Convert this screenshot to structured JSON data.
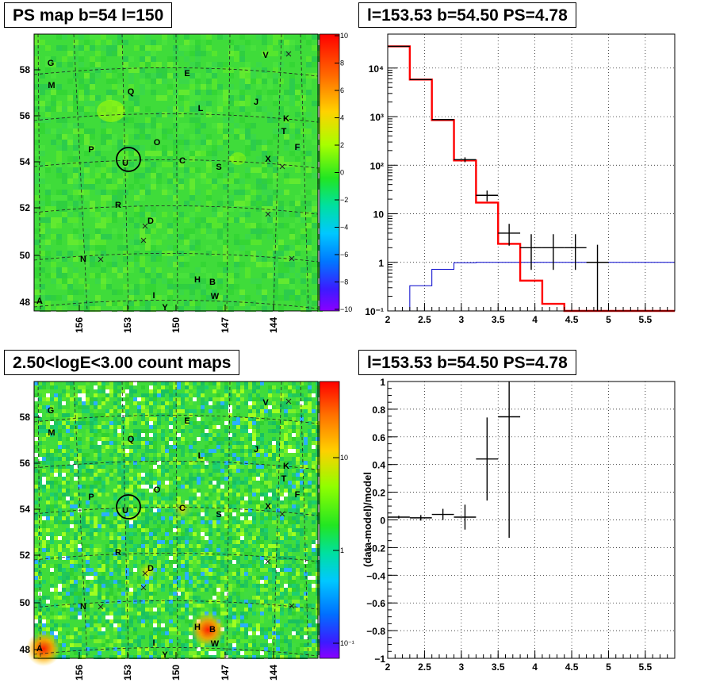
{
  "titles": {
    "map1": "PS map b=54 l=150",
    "spectrum": "l=153.53 b=54.50 PS=4.78",
    "map2": "2.50<logE<3.00 count maps",
    "residual": "l=153.53 b=54.50 PS=4.78"
  },
  "colors": {
    "map_green": "#3fdc3a",
    "model_red": "#ff0000",
    "background_blue": "#0000cc",
    "data_black": "#000000"
  },
  "chart_data": [
    {
      "type": "heatmap",
      "name": "ps-map",
      "title": "PS map b=54 l=150",
      "xticks": [
        "156",
        "153",
        "150",
        "147",
        "144"
      ],
      "yticks": [
        "58",
        "56",
        "54",
        "52",
        "50",
        "48"
      ],
      "colorbar_ticks": [
        "10",
        "8",
        "6",
        "4",
        "2",
        "0",
        "−2",
        "−4",
        "−6",
        "−8",
        "−10"
      ],
      "colorbar_range": [
        -10,
        10
      ],
      "sources": [
        "G",
        "M",
        "Q",
        "E",
        "L",
        "J",
        "V",
        "K",
        "T",
        "F",
        "P",
        "O",
        "C",
        "U",
        "S",
        "X",
        "R",
        "D",
        "N",
        "H",
        "B",
        "I",
        "W",
        "Y",
        "A"
      ],
      "circle_source": "U"
    },
    {
      "type": "line",
      "name": "spectrum",
      "title": "l=153.53 b=54.50 PS=4.78",
      "xlim": [
        2,
        5.9
      ],
      "ylim": [
        0.1,
        50000
      ],
      "yscale": "log",
      "xticks": [
        "2",
        "2.5",
        "3",
        "3.5",
        "4",
        "4.5",
        "5",
        "5.5"
      ],
      "yticks": [
        "10⁻¹",
        "1",
        "10",
        "10²",
        "10³",
        "10⁴"
      ],
      "grid": true,
      "series": [
        {
          "role": "model",
          "color": "#ff0000",
          "edges": [
            2.0,
            2.3,
            2.6,
            2.9,
            3.2,
            3.5,
            3.8,
            4.1,
            4.4,
            4.7,
            5.0,
            5.3,
            5.9
          ],
          "values": [
            28000,
            5800,
            850,
            125,
            17,
            2.4,
            0.42,
            0.14,
            0.1,
            0.1,
            0.1,
            0.1
          ]
        },
        {
          "role": "background",
          "color": "#0000cc",
          "edges": [
            2.0,
            2.3,
            2.6,
            2.9,
            3.2,
            3.5,
            3.8,
            4.1,
            4.4,
            4.7,
            5.0,
            5.3,
            5.9
          ],
          "values": [
            0.03,
            0.33,
            0.72,
            0.98,
            1.0,
            1.0,
            1.0,
            1.0,
            1.0,
            1.0,
            1.0,
            1.0
          ]
        },
        {
          "role": "data",
          "color": "#000000",
          "points": [
            {
              "x": 2.15,
              "y": 28000,
              "xerr": 0.15
            },
            {
              "x": 2.45,
              "y": 5800,
              "xerr": 0.15
            },
            {
              "x": 2.75,
              "y": 870,
              "xerr": 0.15
            },
            {
              "x": 3.05,
              "y": 130,
              "xerr": 0.15,
              "ylo": 115,
              "yhi": 145
            },
            {
              "x": 3.35,
              "y": 24,
              "xerr": 0.15,
              "ylo": 18,
              "yhi": 30
            },
            {
              "x": 3.65,
              "y": 4,
              "xerr": 0.15,
              "ylo": 2.2,
              "yhi": 6.2
            },
            {
              "x": 3.95,
              "y": 2,
              "xerr": 0.15,
              "ylo": 0.7,
              "yhi": 3.8
            },
            {
              "x": 4.25,
              "y": 2,
              "xerr": 0.15,
              "ylo": 0.7,
              "yhi": 3.8
            },
            {
              "x": 4.55,
              "y": 2,
              "xerr": 0.15,
              "ylo": 0.7,
              "yhi": 3.8
            },
            {
              "x": 4.85,
              "y": 1,
              "xerr": 0.15,
              "ylo": 0.1,
              "yhi": 2.3
            }
          ]
        }
      ]
    },
    {
      "type": "heatmap",
      "name": "count-map",
      "title": "2.50<logE<3.00 count maps",
      "xticks": [
        "156",
        "153",
        "150",
        "147",
        "144"
      ],
      "yticks": [
        "58",
        "56",
        "54",
        "52",
        "50",
        "48"
      ],
      "colorbar_ticks": [
        "10",
        "1",
        "10⁻¹"
      ],
      "sources": [
        "G",
        "M",
        "Q",
        "E",
        "L",
        "J",
        "V",
        "K",
        "T",
        "F",
        "P",
        "O",
        "C",
        "U",
        "S",
        "X",
        "R",
        "D",
        "N",
        "H",
        "B",
        "I",
        "W",
        "Y",
        "A"
      ],
      "circle_source": "U"
    },
    {
      "type": "scatter",
      "name": "residual",
      "title": "l=153.53 b=54.50 PS=4.78",
      "ylabel": "(data-model)/model",
      "xlim": [
        2,
        5.9
      ],
      "ylim": [
        -1,
        1
      ],
      "xticks": [
        "2",
        "2.5",
        "3",
        "3.5",
        "4",
        "4.5",
        "5",
        "5.5"
      ],
      "yticks": [
        "1",
        "0.8",
        "0.6",
        "0.4",
        "0.2",
        "0",
        "−0.2",
        "−0.4",
        "−0.6",
        "−0.8",
        "−1"
      ],
      "grid": true,
      "points": [
        {
          "x": 2.15,
          "y": 0.02,
          "xerr": 0.15,
          "yerr": 0.01
        },
        {
          "x": 2.45,
          "y": 0.015,
          "xerr": 0.15,
          "yerr": 0.02
        },
        {
          "x": 2.75,
          "y": 0.04,
          "xerr": 0.15,
          "yerr": 0.04
        },
        {
          "x": 3.05,
          "y": 0.02,
          "xerr": 0.15,
          "yerr": 0.09
        },
        {
          "x": 3.35,
          "y": 0.44,
          "xerr": 0.15,
          "yerr": 0.3
        },
        {
          "x": 3.65,
          "y": 0.745,
          "xerr": 0.15,
          "ylo": -0.13,
          "yhi": 1.0
        }
      ]
    }
  ]
}
